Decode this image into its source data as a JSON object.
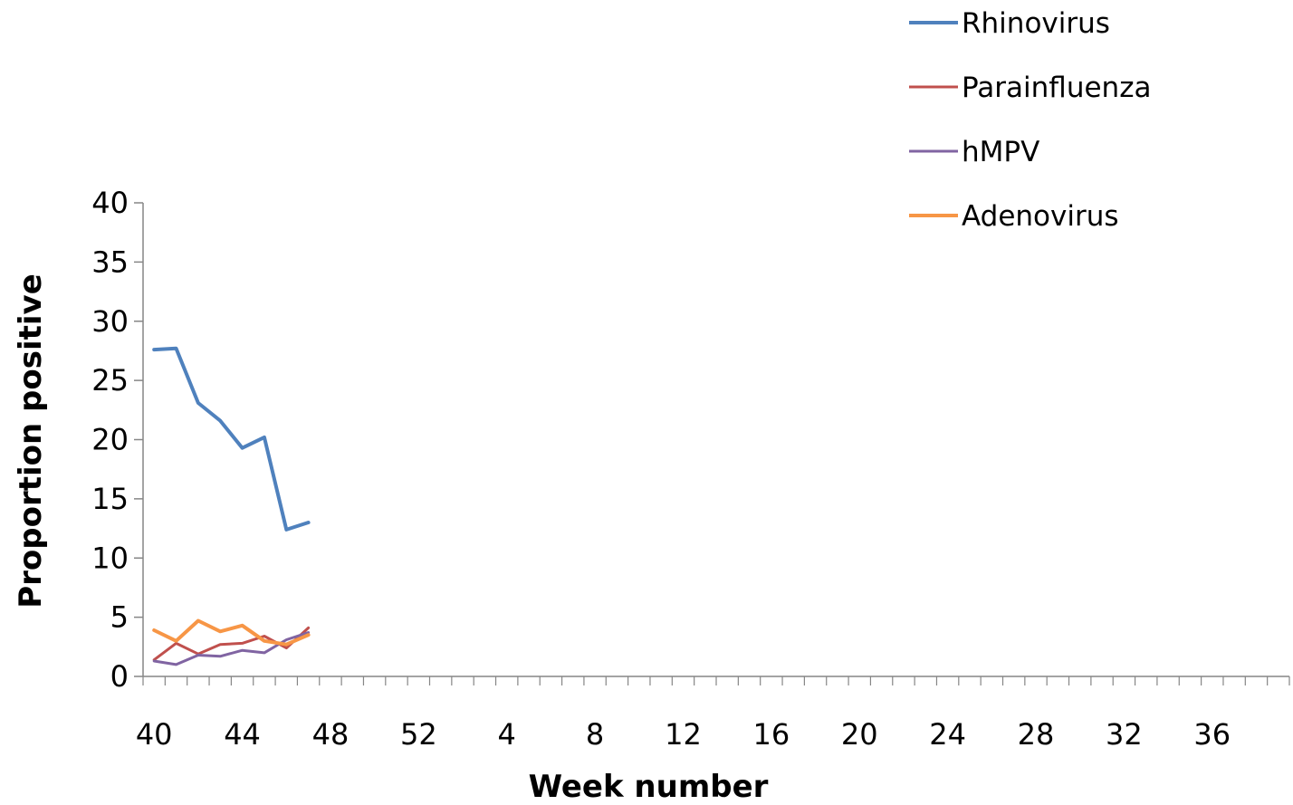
{
  "chart_data": {
    "type": "line",
    "xlabel": "Week number",
    "ylabel": "Proportion positive",
    "ylim": [
      0,
      40
    ],
    "yticks": [
      0,
      5,
      10,
      15,
      20,
      25,
      30,
      35,
      40
    ],
    "x_tick_labels": [
      "40",
      "44",
      "48",
      "52",
      "4",
      "8",
      "12",
      "16",
      "20",
      "24",
      "28",
      "32",
      "36"
    ],
    "x_category_count": 52,
    "x_categories": [
      40,
      41,
      42,
      43,
      44,
      45,
      46,
      47,
      48,
      49,
      50,
      51,
      52,
      1,
      2,
      3,
      4,
      5,
      6,
      7,
      8,
      9,
      10,
      11,
      12,
      13,
      14,
      15,
      16,
      17,
      18,
      19,
      20,
      21,
      22,
      23,
      24,
      25,
      26,
      27,
      28,
      29,
      30,
      31,
      32,
      33,
      34,
      35,
      36,
      37,
      38,
      39
    ],
    "legend_position": "top-right",
    "grid": false,
    "series": [
      {
        "name": "Rhinovirus",
        "color": "#4F81BD",
        "x": [
          40,
          41,
          42,
          43,
          44,
          45,
          46,
          47
        ],
        "values": [
          27.6,
          27.7,
          23.1,
          21.6,
          19.3,
          20.2,
          12.4,
          13.0
        ]
      },
      {
        "name": "Parainfluenza",
        "color": "#C0504D",
        "x": [
          40,
          41,
          42,
          43,
          44,
          45,
          46,
          47
        ],
        "values": [
          1.4,
          2.8,
          1.9,
          2.7,
          2.8,
          3.4,
          2.4,
          4.1
        ]
      },
      {
        "name": "hMPV",
        "color": "#8064A2",
        "x": [
          40,
          41,
          42,
          43,
          44,
          45,
          46,
          47
        ],
        "values": [
          1.3,
          1.0,
          1.8,
          1.7,
          2.2,
          2.0,
          3.1,
          3.7
        ]
      },
      {
        "name": "Adenovirus",
        "color": "#F79646",
        "x": [
          40,
          41,
          42,
          43,
          44,
          45,
          46,
          47
        ],
        "values": [
          3.9,
          3.0,
          4.7,
          3.8,
          4.3,
          3.0,
          2.7,
          3.5
        ]
      }
    ]
  }
}
